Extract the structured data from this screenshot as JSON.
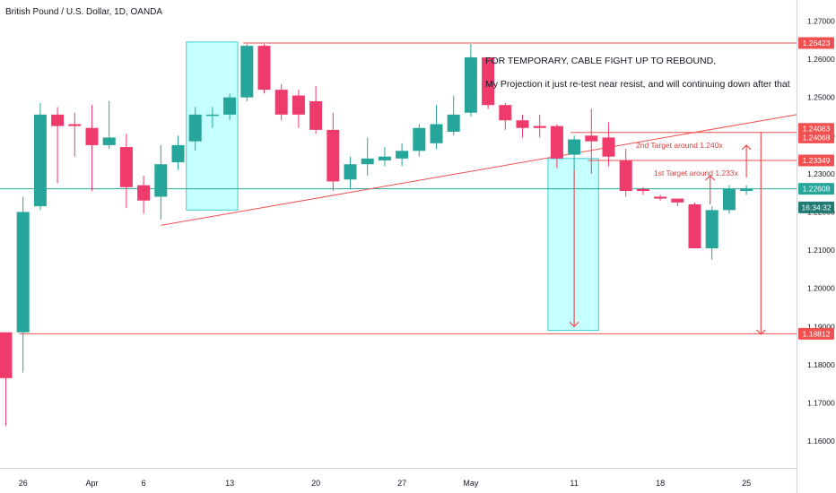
{
  "header": {
    "title": "British Pound / U.S. Dollar, 1D, OANDA"
  },
  "annotations": {
    "line1": "FOR TEMPORARY, CABLE FIGHT UP TO REBOUND,",
    "line2": "My Projection it just re-test near resist, and will continuing down after that",
    "target1": "1st Target around 1.233x",
    "target2": "2nd Target around 1.240x"
  },
  "colors": {
    "up": "#26a69a",
    "down": "#ef3b6b",
    "line": "#f05050",
    "box": "#7fffff",
    "axis_text": "#131722"
  },
  "chart_data": {
    "type": "candlestick",
    "title": "British Pound / U.S. Dollar, 1D, OANDA",
    "xlabel": "",
    "ylabel": "",
    "ylim": [
      1.153,
      1.2755
    ],
    "x_ticks": [
      {
        "label": "26",
        "i": 1
      },
      {
        "label": "Apr",
        "i": 5
      },
      {
        "label": "6",
        "i": 8
      },
      {
        "label": "13",
        "i": 13
      },
      {
        "label": "20",
        "i": 18
      },
      {
        "label": "27",
        "i": 23
      },
      {
        "label": "May",
        "i": 27
      },
      {
        "label": "11",
        "i": 33
      },
      {
        "label": "18",
        "i": 38
      },
      {
        "label": "25",
        "i": 43
      }
    ],
    "y_ticks": [
      1.16,
      1.17,
      1.18,
      1.19,
      1.2,
      1.21,
      1.22,
      1.23,
      1.24,
      1.25,
      1.26,
      1.27
    ],
    "price_labels": [
      {
        "value": 1.26423,
        "text": "1.26423",
        "kind": "line"
      },
      {
        "value": 1.24083,
        "text": "1.24083",
        "kind": "line"
      },
      {
        "value": 1.24068,
        "text": "1.24068",
        "kind": "line"
      },
      {
        "value": 1.23349,
        "text": "1.23349",
        "kind": "line"
      },
      {
        "value": 1.22608,
        "text": "1.22608",
        "kind": "price"
      },
      {
        "value": 1.2212,
        "text": "16:34:32",
        "kind": "timer"
      },
      {
        "value": 1.18812,
        "text": "1.18812",
        "kind": "line"
      }
    ],
    "candles": [
      {
        "o": 1.1885,
        "h": 1.1885,
        "l": 1.164,
        "c": 1.1765
      },
      {
        "o": 1.1885,
        "h": 1.224,
        "l": 1.178,
        "c": 1.22
      },
      {
        "o": 1.2215,
        "h": 1.2485,
        "l": 1.2205,
        "c": 1.2455
      },
      {
        "o": 1.2455,
        "h": 1.2475,
        "l": 1.2275,
        "c": 1.2425
      },
      {
        "o": 1.243,
        "h": 1.246,
        "l": 1.2345,
        "c": 1.2425
      },
      {
        "o": 1.242,
        "h": 1.248,
        "l": 1.2255,
        "c": 1.2375
      },
      {
        "o": 1.2375,
        "h": 1.249,
        "l": 1.2365,
        "c": 1.2395
      },
      {
        "o": 1.237,
        "h": 1.2405,
        "l": 1.221,
        "c": 1.2265
      },
      {
        "o": 1.227,
        "h": 1.2295,
        "l": 1.2195,
        "c": 1.223
      },
      {
        "o": 1.224,
        "h": 1.2375,
        "l": 1.218,
        "c": 1.2325
      },
      {
        "o": 1.233,
        "h": 1.24,
        "l": 1.231,
        "c": 1.2375
      },
      {
        "o": 1.2385,
        "h": 1.2475,
        "l": 1.236,
        "c": 1.2455
      },
      {
        "o": 1.2455,
        "h": 1.2475,
        "l": 1.242,
        "c": 1.2455
      },
      {
        "o": 1.2455,
        "h": 1.251,
        "l": 1.244,
        "c": 1.25
      },
      {
        "o": 1.25,
        "h": 1.264,
        "l": 1.249,
        "c": 1.2635
      },
      {
        "o": 1.2635,
        "h": 1.264,
        "l": 1.251,
        "c": 1.252
      },
      {
        "o": 1.252,
        "h": 1.2535,
        "l": 1.244,
        "c": 1.2455
      },
      {
        "o": 1.2505,
        "h": 1.252,
        "l": 1.242,
        "c": 1.2455
      },
      {
        "o": 1.249,
        "h": 1.253,
        "l": 1.2405,
        "c": 1.2415
      },
      {
        "o": 1.2415,
        "h": 1.246,
        "l": 1.2255,
        "c": 1.228
      },
      {
        "o": 1.2285,
        "h": 1.2345,
        "l": 1.226,
        "c": 1.2325
      },
      {
        "o": 1.2325,
        "h": 1.2395,
        "l": 1.2295,
        "c": 1.234
      },
      {
        "o": 1.2335,
        "h": 1.237,
        "l": 1.232,
        "c": 1.2345
      },
      {
        "o": 1.234,
        "h": 1.238,
        "l": 1.232,
        "c": 1.236
      },
      {
        "o": 1.236,
        "h": 1.243,
        "l": 1.2345,
        "c": 1.242
      },
      {
        "o": 1.238,
        "h": 1.248,
        "l": 1.2365,
        "c": 1.243
      },
      {
        "o": 1.241,
        "h": 1.2505,
        "l": 1.24,
        "c": 1.2455
      },
      {
        "o": 1.246,
        "h": 1.264,
        "l": 1.245,
        "c": 1.2605
      },
      {
        "o": 1.2605,
        "h": 1.2605,
        "l": 1.247,
        "c": 1.248
      },
      {
        "o": 1.248,
        "h": 1.2485,
        "l": 1.2415,
        "c": 1.244
      },
      {
        "o": 1.244,
        "h": 1.2455,
        "l": 1.2395,
        "c": 1.242
      },
      {
        "o": 1.2425,
        "h": 1.2455,
        "l": 1.2395,
        "c": 1.242
      },
      {
        "o": 1.2425,
        "h": 1.243,
        "l": 1.2315,
        "c": 1.234
      },
      {
        "o": 1.235,
        "h": 1.24,
        "l": 1.228,
        "c": 1.239
      },
      {
        "o": 1.24,
        "h": 1.247,
        "l": 1.23,
        "c": 1.2385
      },
      {
        "o": 1.2395,
        "h": 1.2435,
        "l": 1.232,
        "c": 1.2345
      },
      {
        "o": 1.2335,
        "h": 1.2365,
        "l": 1.224,
        "c": 1.2255
      },
      {
        "o": 1.226,
        "h": 1.2265,
        "l": 1.2245,
        "c": 1.2255
      },
      {
        "o": 1.224,
        "h": 1.2245,
        "l": 1.223,
        "c": 1.2235
      },
      {
        "o": 1.2235,
        "h": 1.2235,
        "l": 1.2215,
        "c": 1.2225
      },
      {
        "o": 1.222,
        "h": 1.2225,
        "l": 1.2105,
        "c": 1.2105
      },
      {
        "o": 1.2105,
        "h": 1.2215,
        "l": 1.2075,
        "c": 1.2205
      },
      {
        "o": 1.2205,
        "h": 1.227,
        "l": 1.2195,
        "c": 1.226
      },
      {
        "o": 1.2255,
        "h": 1.227,
        "l": 1.2245,
        "c": 1.226
      }
    ]
  }
}
